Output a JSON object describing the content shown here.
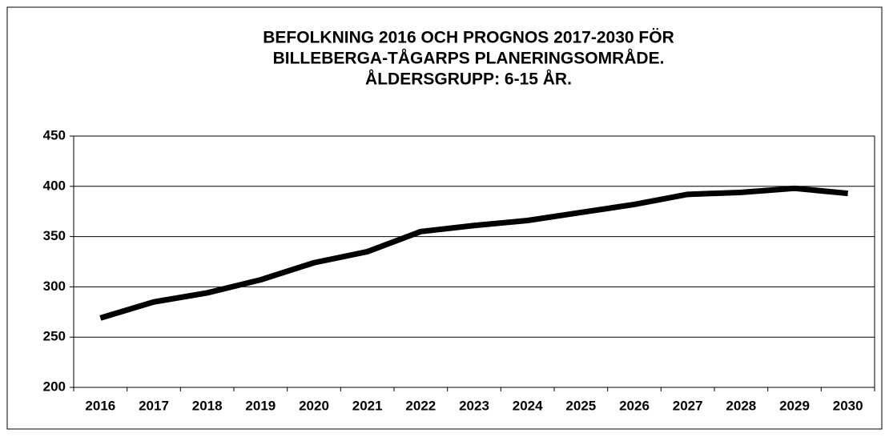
{
  "chart_data": {
    "type": "line",
    "title": [
      "BEFOLKNING 2016 OCH PROGNOS 2017-2030 FÖR",
      "BILLEBERGA-TÅGARPS PLANERINGSOMRÅDE.",
      "ÅLDERSGRUPP: 6-15 ÅR."
    ],
    "categories": [
      "2016",
      "2017",
      "2018",
      "2019",
      "2020",
      "2021",
      "2022",
      "2023",
      "2024",
      "2025",
      "2026",
      "2027",
      "2028",
      "2029",
      "2030"
    ],
    "values": [
      269,
      285,
      294,
      307,
      324,
      335,
      355,
      361,
      366,
      374,
      382,
      392,
      394,
      398,
      393
    ],
    "color": "#000000",
    "ylim": [
      200,
      450
    ],
    "yticks": [
      200,
      250,
      300,
      350,
      400,
      450
    ],
    "grid": true
  }
}
